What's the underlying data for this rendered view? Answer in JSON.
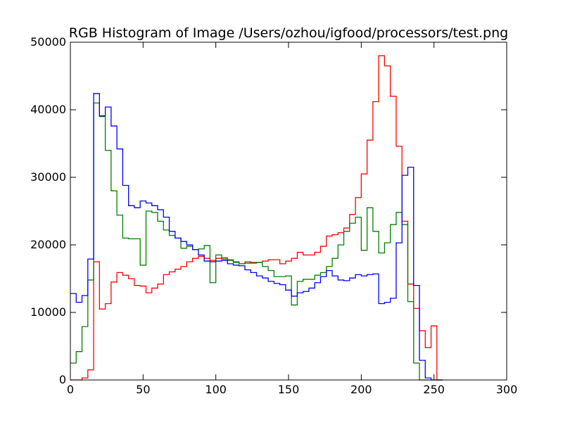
{
  "chart_data": {
    "type": "line",
    "title": "RGB Histogram of Image /Users/ozhou/igfood/processors/test.png",
    "xlabel": "",
    "ylabel": "",
    "xlim": [
      0,
      300
    ],
    "ylim": [
      0,
      50000
    ],
    "grid": false,
    "legend": "none",
    "x_ticks": [
      0,
      50,
      100,
      150,
      200,
      250,
      300
    ],
    "y_ticks": [
      0,
      10000,
      20000,
      30000,
      40000,
      50000
    ],
    "bin_width": 4,
    "x": [
      0,
      4,
      8,
      12,
      16,
      20,
      24,
      28,
      32,
      36,
      40,
      44,
      48,
      52,
      56,
      60,
      64,
      68,
      72,
      76,
      80,
      84,
      88,
      92,
      96,
      100,
      104,
      108,
      112,
      116,
      120,
      124,
      128,
      132,
      136,
      140,
      144,
      148,
      152,
      156,
      160,
      164,
      168,
      172,
      176,
      180,
      184,
      188,
      192,
      196,
      200,
      204,
      208,
      212,
      216,
      220,
      224,
      228,
      232,
      236,
      240,
      244,
      248,
      252
    ],
    "series": [
      {
        "color": "#ff0000",
        "values": [
          0,
          0,
          300,
          1500,
          17500,
          10500,
          11300,
          14500,
          15900,
          15500,
          15000,
          14000,
          13900,
          12900,
          13600,
          14200,
          15600,
          16000,
          16400,
          16800,
          17500,
          18000,
          18300,
          18000,
          17700,
          18000,
          18100,
          17800,
          17500,
          17200,
          17300,
          17400,
          17400,
          17600,
          17800,
          17800,
          17200,
          17600,
          18000,
          18900,
          18500,
          18500,
          18900,
          19800,
          21300,
          21500,
          21800,
          22500,
          24500,
          27000,
          30500,
          35500,
          41200,
          48000,
          46500,
          42000,
          34600,
          23500,
          14200,
          10600,
          7300,
          4800,
          8000,
          0
        ]
      },
      {
        "color": "#008000",
        "values": [
          2500,
          4200,
          7900,
          14800,
          41000,
          39000,
          34000,
          28000,
          24400,
          21000,
          20900,
          20900,
          17000,
          25000,
          24800,
          23500,
          22200,
          21400,
          21000,
          19500,
          19800,
          19300,
          19400,
          19900,
          14400,
          18500,
          17900,
          17700,
          17400,
          17200,
          17500,
          17300,
          17400,
          16800,
          16200,
          15300,
          15300,
          15400,
          11100,
          14600,
          14900,
          14900,
          15500,
          15900,
          16800,
          18000,
          20000,
          22000,
          23200,
          24100,
          19200,
          25500,
          22000,
          18800,
          20300,
          23000,
          24800,
          23000,
          11600,
          2500,
          0,
          0,
          0,
          0
        ]
      },
      {
        "color": "#0000ff",
        "values": [
          12800,
          11500,
          12500,
          17900,
          42400,
          39100,
          40400,
          37600,
          34200,
          28800,
          25800,
          25500,
          26500,
          26200,
          25800,
          25200,
          24100,
          22000,
          21000,
          20500,
          20000,
          19300,
          18500,
          17600,
          17500,
          17600,
          17700,
          17200,
          17000,
          16900,
          16300,
          15900,
          15400,
          15100,
          14600,
          14300,
          14100,
          13300,
          12400,
          12900,
          13100,
          13600,
          14400,
          15300,
          16200,
          15400,
          14800,
          14700,
          15100,
          15600,
          15400,
          15600,
          15700,
          11300,
          11500,
          12100,
          20300,
          30300,
          31500,
          14000,
          2900,
          300,
          0,
          0
        ]
      }
    ]
  }
}
